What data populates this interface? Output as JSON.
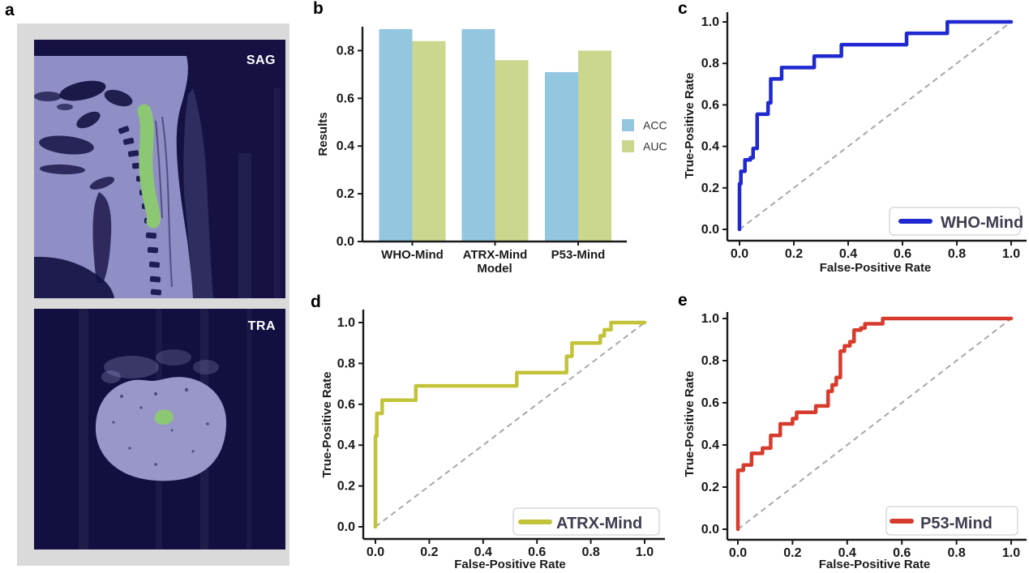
{
  "panels": {
    "a": {
      "letter": "a",
      "images": [
        {
          "label": "SAG"
        },
        {
          "label": "TRA"
        }
      ]
    },
    "b": {
      "letter": "b"
    },
    "c": {
      "letter": "c"
    },
    "d": {
      "letter": "d"
    },
    "e": {
      "letter": "e"
    }
  },
  "colors": {
    "background": "#ffffff",
    "panel_a_bg": "#dadada",
    "mri_dark": "#151243",
    "mri_dark_tra": "#121040",
    "mri_tissue": "#8f8ec5",
    "mri_tissue_tra": "#9996c9",
    "segmentation_green": "#8cc873",
    "acc_blue": "#93c6df",
    "auc_green": "#cbd78c",
    "who_blue": "#2029cf",
    "atrx_olive": "#c2c338",
    "p53_red": "#d63b2c",
    "diagonal_gray": "#a8a8a8",
    "axis": "#1a1a1a",
    "legend_text": "#3e3e50",
    "legend_border": "#d8d8d8"
  },
  "chart_data": [
    {
      "panel": "b",
      "type": "bar",
      "categories": [
        "WHO-Mind",
        "ATRX-Mind",
        "P53-Mind"
      ],
      "series": [
        {
          "name": "ACC",
          "color": "#93c6df",
          "values": [
            0.89,
            0.89,
            0.71
          ]
        },
        {
          "name": "AUC",
          "color": "#cbd78c",
          "values": [
            0.84,
            0.76,
            0.8
          ]
        }
      ],
      "xlabel": "Model",
      "ylabel": "Results",
      "ylim": [
        0,
        0.9
      ],
      "yticks": [
        "0.0",
        "0.2",
        "0.4",
        "0.6",
        "0.8"
      ],
      "grid": false,
      "legend_position": "center right"
    },
    {
      "panel": "c",
      "type": "line",
      "series": [
        {
          "name": "WHO-Mind",
          "color": "#2029cf",
          "points": [
            [
              0,
              0
            ],
            [
              0,
              0.22
            ],
            [
              0.005,
              0.22
            ],
            [
              0.005,
              0.28
            ],
            [
              0.02,
              0.28
            ],
            [
              0.02,
              0.335
            ],
            [
              0.04,
              0.335
            ],
            [
              0.04,
              0.345
            ],
            [
              0.05,
              0.345
            ],
            [
              0.05,
              0.39
            ],
            [
              0.065,
              0.39
            ],
            [
              0.065,
              0.555
            ],
            [
              0.105,
              0.555
            ],
            [
              0.105,
              0.61
            ],
            [
              0.115,
              0.61
            ],
            [
              0.115,
              0.725
            ],
            [
              0.155,
              0.725
            ],
            [
              0.155,
              0.78
            ],
            [
              0.275,
              0.78
            ],
            [
              0.275,
              0.835
            ],
            [
              0.375,
              0.835
            ],
            [
              0.375,
              0.89
            ],
            [
              0.615,
              0.89
            ],
            [
              0.615,
              0.945
            ],
            [
              0.765,
              0.945
            ],
            [
              0.765,
              1.0
            ],
            [
              1.0,
              1.0
            ]
          ]
        }
      ],
      "xlabel": "False-Positive Rate",
      "ylabel": "True-Positive Rate",
      "xlim": [
        0,
        1
      ],
      "ylim": [
        0,
        1
      ],
      "xticks": [
        "0.0",
        "0.2",
        "0.4",
        "0.6",
        "0.8",
        "1.0"
      ],
      "yticks": [
        "0.0",
        "0.2",
        "0.4",
        "0.6",
        "0.8",
        "1.0"
      ],
      "diagonal_reference": true,
      "legend_position": "lower right"
    },
    {
      "panel": "d",
      "type": "line",
      "series": [
        {
          "name": "ATRX-Mind",
          "color": "#c2c338",
          "points": [
            [
              0,
              0
            ],
            [
              0,
              0.445
            ],
            [
              0.005,
              0.445
            ],
            [
              0.005,
              0.555
            ],
            [
              0.025,
              0.555
            ],
            [
              0.025,
              0.62
            ],
            [
              0.15,
              0.62
            ],
            [
              0.15,
              0.69
            ],
            [
              0.525,
              0.69
            ],
            [
              0.525,
              0.755
            ],
            [
              0.71,
              0.755
            ],
            [
              0.71,
              0.835
            ],
            [
              0.73,
              0.835
            ],
            [
              0.73,
              0.9
            ],
            [
              0.835,
              0.9
            ],
            [
              0.835,
              0.935
            ],
            [
              0.85,
              0.935
            ],
            [
              0.85,
              0.965
            ],
            [
              0.875,
              0.965
            ],
            [
              0.875,
              1.0
            ],
            [
              1.0,
              1.0
            ]
          ]
        }
      ],
      "xlabel": "False-Positive Rate",
      "ylabel": "True-Positive Rate",
      "xlim": [
        0,
        1
      ],
      "ylim": [
        0,
        1
      ],
      "xticks": [
        "0.0",
        "0.2",
        "0.4",
        "0.6",
        "0.8",
        "1.0"
      ],
      "yticks": [
        "0.0",
        "0.2",
        "0.4",
        "0.6",
        "0.8",
        "1.0"
      ],
      "diagonal_reference": true,
      "legend_position": "lower right"
    },
    {
      "panel": "e",
      "type": "line",
      "series": [
        {
          "name": "P53-Mind",
          "color": "#d63b2c",
          "points": [
            [
              0,
              0
            ],
            [
              0,
              0.28
            ],
            [
              0.02,
              0.28
            ],
            [
              0.02,
              0.305
            ],
            [
              0.05,
              0.305
            ],
            [
              0.05,
              0.36
            ],
            [
              0.09,
              0.36
            ],
            [
              0.09,
              0.385
            ],
            [
              0.12,
              0.385
            ],
            [
              0.12,
              0.445
            ],
            [
              0.155,
              0.445
            ],
            [
              0.155,
              0.5
            ],
            [
              0.2,
              0.5
            ],
            [
              0.2,
              0.525
            ],
            [
              0.215,
              0.525
            ],
            [
              0.215,
              0.555
            ],
            [
              0.285,
              0.555
            ],
            [
              0.285,
              0.585
            ],
            [
              0.33,
              0.585
            ],
            [
              0.33,
              0.655
            ],
            [
              0.345,
              0.655
            ],
            [
              0.345,
              0.685
            ],
            [
              0.36,
              0.685
            ],
            [
              0.36,
              0.72
            ],
            [
              0.375,
              0.72
            ],
            [
              0.375,
              0.845
            ],
            [
              0.39,
              0.845
            ],
            [
              0.39,
              0.87
            ],
            [
              0.41,
              0.87
            ],
            [
              0.41,
              0.89
            ],
            [
              0.425,
              0.89
            ],
            [
              0.425,
              0.945
            ],
            [
              0.45,
              0.945
            ],
            [
              0.45,
              0.955
            ],
            [
              0.465,
              0.955
            ],
            [
              0.465,
              0.975
            ],
            [
              0.53,
              0.975
            ],
            [
              0.53,
              1.0
            ],
            [
              1.0,
              1.0
            ]
          ]
        }
      ],
      "xlabel": "False-Positive Rate",
      "ylabel": "True-Positive Rate",
      "xlim": [
        0,
        1
      ],
      "ylim": [
        0,
        1
      ],
      "xticks": [
        "0.0",
        "0.2",
        "0.4",
        "0.6",
        "0.8",
        "1.0"
      ],
      "yticks": [
        "0.0",
        "0.2",
        "0.4",
        "0.6",
        "0.8",
        "1.0"
      ],
      "diagonal_reference": true,
      "legend_position": "lower right"
    }
  ]
}
